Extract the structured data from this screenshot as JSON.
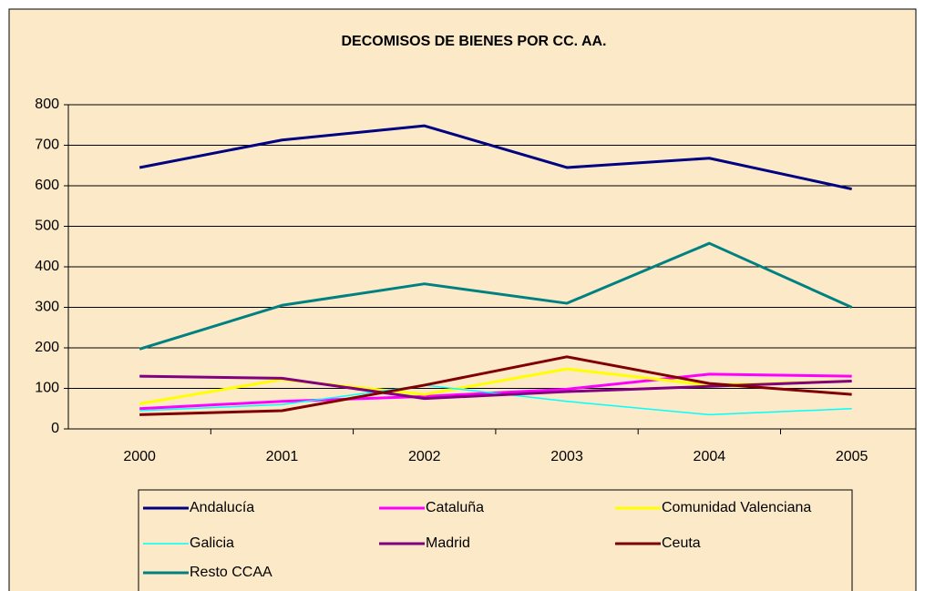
{
  "chart_data": {
    "type": "line",
    "title": "DECOMISOS DE BIENES POR CC. AA.",
    "categories": [
      "2000",
      "2001",
      "2002",
      "2003",
      "2004",
      "2005"
    ],
    "series": [
      {
        "name": "Andalucía",
        "color": "#000080",
        "values": [
          645,
          713,
          748,
          645,
          668,
          592
        ]
      },
      {
        "name": "Cataluña",
        "color": "#ff00ff",
        "values": [
          50,
          68,
          80,
          98,
          135,
          130
        ]
      },
      {
        "name": "Comunidad Valenciana",
        "color": "#ffff00",
        "values": [
          62,
          122,
          85,
          148,
          108,
          118
        ]
      },
      {
        "name": "Galicia",
        "color": "#00ffff",
        "values": [
          45,
          60,
          108,
          68,
          35,
          50
        ]
      },
      {
        "name": "Madrid",
        "color": "#800080",
        "values": [
          130,
          125,
          75,
          92,
          105,
          118
        ]
      },
      {
        "name": "Ceuta",
        "color": "#800000",
        "values": [
          35,
          45,
          108,
          178,
          112,
          85
        ]
      },
      {
        "name": "Resto CCAA",
        "color": "#008080",
        "values": [
          197,
          305,
          358,
          310,
          458,
          300
        ]
      }
    ],
    "ylim": [
      0,
      800
    ],
    "yticks": [
      0,
      100,
      200,
      300,
      400,
      500,
      600,
      700,
      800
    ],
    "grid": true
  }
}
